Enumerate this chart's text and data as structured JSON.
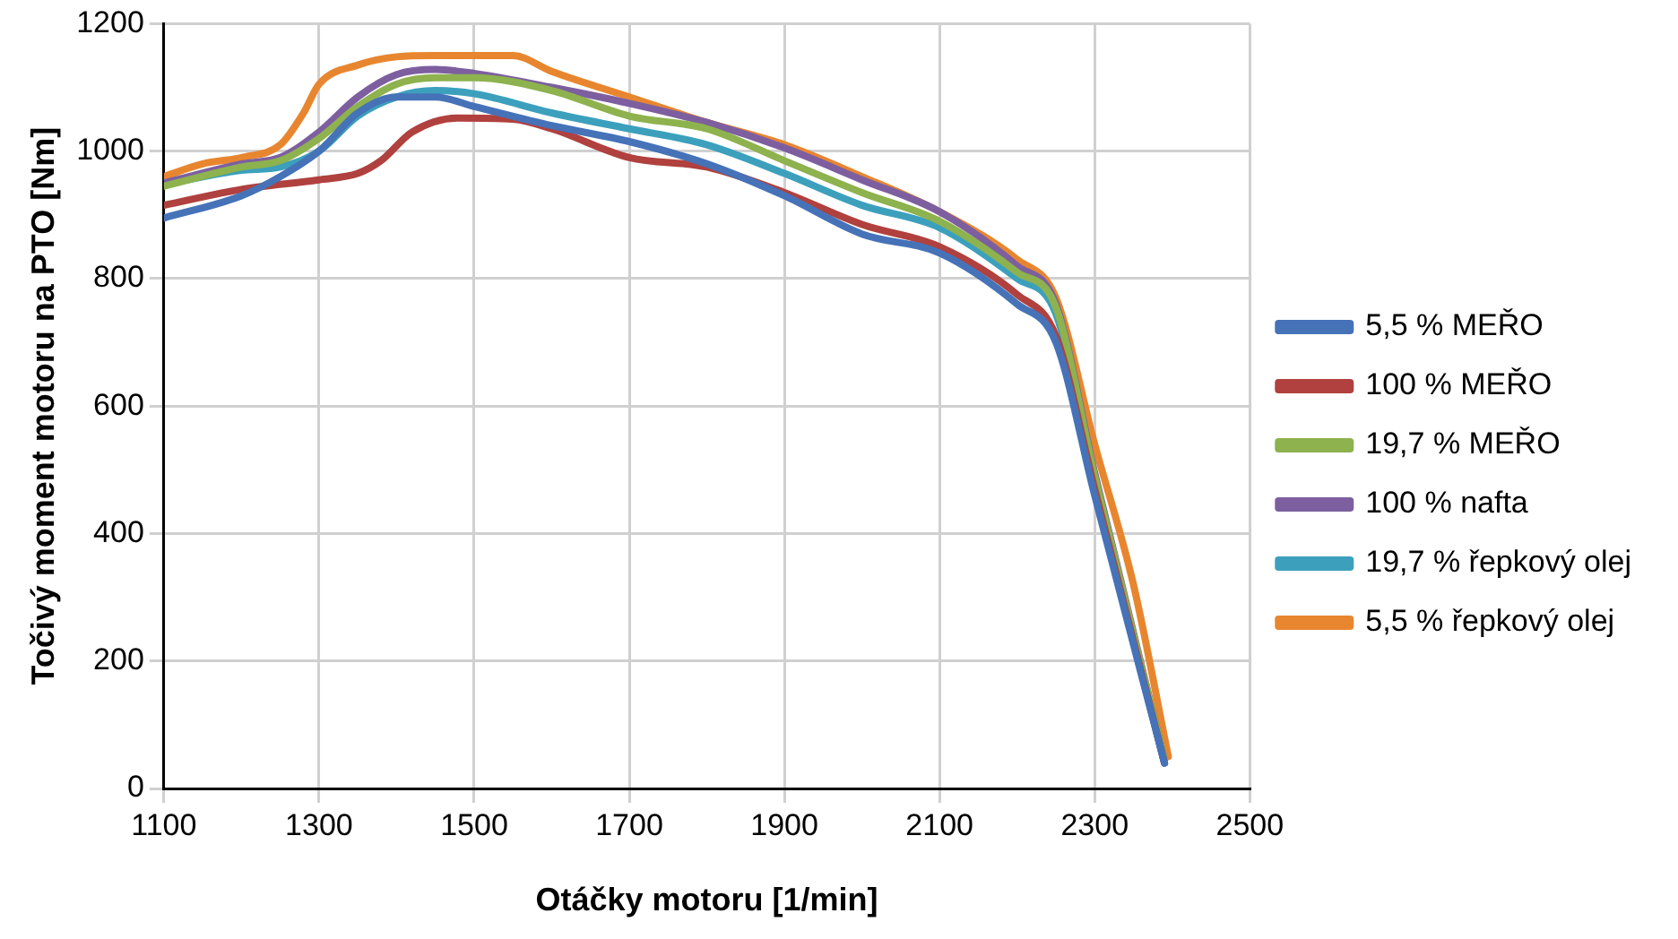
{
  "chart_data": {
    "type": "line",
    "xlabel": "Otáčky motoru [1/min]",
    "ylabel": "Točivý moment motoru na PTO [Nm]",
    "xlim": [
      1100,
      2500
    ],
    "xticks": [
      1100,
      1300,
      1500,
      1700,
      1900,
      2100,
      2300,
      2500
    ],
    "ylim": [
      0,
      1200
    ],
    "yticks": [
      0,
      200,
      400,
      600,
      800,
      1000,
      1200
    ],
    "grid": true,
    "legend": "right",
    "marker": "none",
    "line_style": "solid",
    "series": [
      {
        "name": "5,5 % MEŘO",
        "color": "#4672b8",
        "x": [
          1100,
          1200,
          1250,
          1300,
          1350,
          1400,
          1450,
          1500,
          1600,
          1700,
          1800,
          1900,
          2000,
          2100,
          2200,
          2250,
          2300,
          2390
        ],
        "values": [
          895,
          930,
          960,
          1000,
          1060,
          1085,
          1085,
          1070,
          1040,
          1015,
          980,
          930,
          870,
          840,
          760,
          700,
          460,
          40
        ]
      },
      {
        "name": "100 % MEŘO",
        "color": "#b0413e",
        "x": [
          1100,
          1200,
          1300,
          1350,
          1380,
          1420,
          1480,
          1550,
          1600,
          1700,
          1800,
          1900,
          2000,
          2100,
          2200,
          2250,
          2300,
          2390
        ],
        "values": [
          915,
          940,
          955,
          965,
          985,
          1030,
          1052,
          1050,
          1035,
          990,
          975,
          935,
          885,
          850,
          775,
          710,
          470,
          40
        ]
      },
      {
        "name": "19,7 % MEŘO",
        "color": "#8db24e",
        "x": [
          1100,
          1200,
          1250,
          1300,
          1350,
          1400,
          1450,
          1500,
          1600,
          1700,
          1800,
          1900,
          2000,
          2100,
          2200,
          2250,
          2300,
          2390
        ],
        "values": [
          945,
          975,
          985,
          1020,
          1070,
          1105,
          1115,
          1115,
          1095,
          1055,
          1035,
          985,
          935,
          890,
          810,
          755,
          490,
          45
        ]
      },
      {
        "name": "100 % nafta",
        "color": "#7d5fa0",
        "x": [
          1100,
          1200,
          1250,
          1300,
          1350,
          1400,
          1450,
          1500,
          1600,
          1700,
          1800,
          1900,
          2000,
          2100,
          2200,
          2250,
          2300,
          2390
        ],
        "values": [
          950,
          980,
          990,
          1030,
          1085,
          1120,
          1128,
          1122,
          1100,
          1075,
          1045,
          1005,
          955,
          905,
          820,
          760,
          495,
          45
        ]
      },
      {
        "name": "19,7 % řepkový olej",
        "color": "#3ca0bd",
        "x": [
          1130,
          1200,
          1250,
          1300,
          1350,
          1400,
          1450,
          1500,
          1600,
          1700,
          1800,
          1900,
          2000,
          2100,
          2200,
          2250,
          2300,
          2390
        ],
        "values": [
          955,
          970,
          975,
          1000,
          1055,
          1085,
          1095,
          1090,
          1060,
          1035,
          1010,
          965,
          915,
          880,
          800,
          745,
          480,
          40
        ]
      },
      {
        "name": "5,5 % řepkový olej",
        "color": "#e8862f",
        "x": [
          1100,
          1150,
          1200,
          1250,
          1280,
          1300,
          1350,
          1400,
          1450,
          1500,
          1550,
          1600,
          1700,
          1800,
          1900,
          2000,
          2100,
          2200,
          2250,
          2300,
          2350,
          2395
        ],
        "values": [
          960,
          980,
          990,
          1010,
          1060,
          1105,
          1135,
          1148,
          1150,
          1150,
          1150,
          1125,
          1085,
          1045,
          1010,
          960,
          905,
          830,
          770,
          540,
          320,
          50
        ]
      }
    ]
  }
}
